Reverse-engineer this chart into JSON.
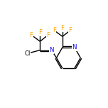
{
  "background_color": "#ffffff",
  "bond_color": "#000000",
  "atom_colors": {
    "F": "#ffa500",
    "Cl": "#000000",
    "N": "#0000ff",
    "C": "#000000"
  },
  "figsize": [
    1.52,
    1.52
  ],
  "dpi": 100,
  "line_width": 1.0,
  "font_size": 6.2
}
